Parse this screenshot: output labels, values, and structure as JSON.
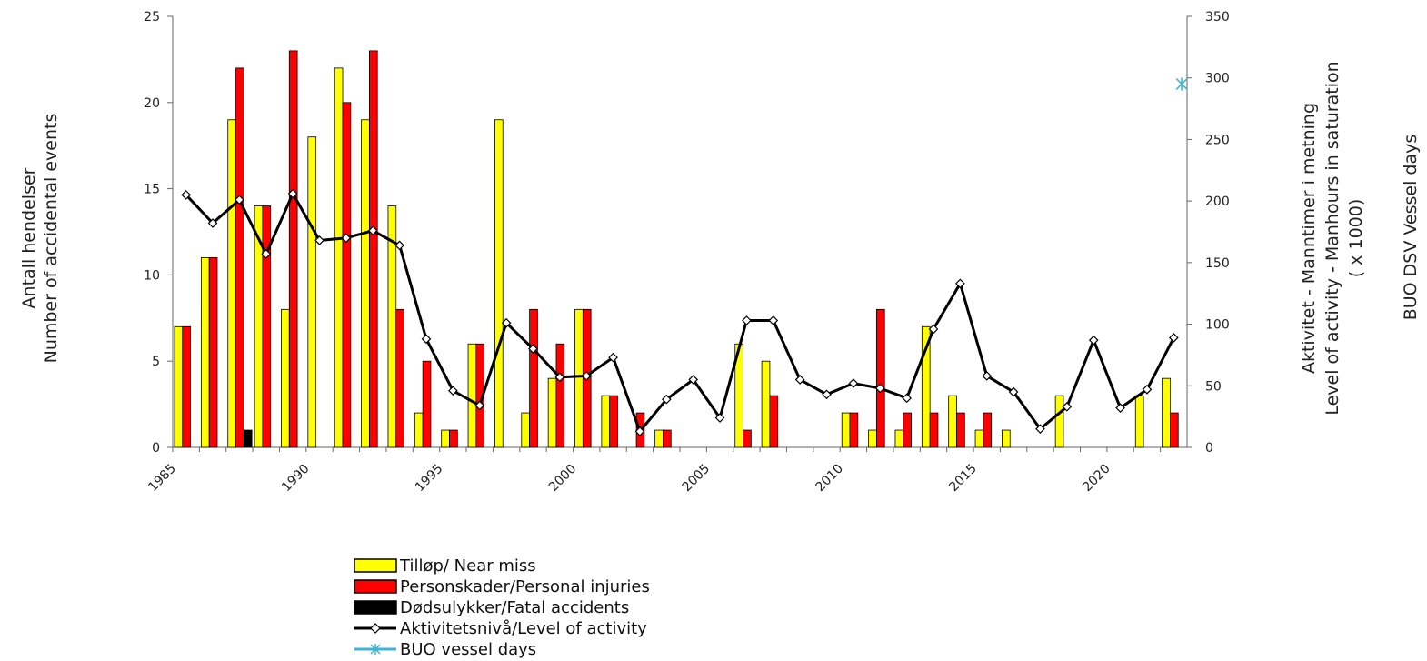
{
  "chart_data": {
    "type": "bar",
    "years": [
      1985,
      1986,
      1987,
      1988,
      1989,
      1990,
      1991,
      1992,
      1993,
      1994,
      1995,
      1996,
      1997,
      1998,
      1999,
      2000,
      2001,
      2002,
      2003,
      2004,
      2005,
      2006,
      2007,
      2008,
      2009,
      2010,
      2011,
      2012,
      2013,
      2014,
      2015,
      2016,
      2017,
      2018,
      2019,
      2020,
      2021,
      2022
    ],
    "x_tick_labels": [
      "1985",
      "1990",
      "1995",
      "2000",
      "2005",
      "2010",
      "2015",
      "2020"
    ],
    "y_left": {
      "label_line1": "Antall hendelser",
      "label_line2": "Number of accidental events",
      "ylim": [
        0,
        25
      ],
      "ticks": [
        "0",
        "5",
        "10",
        "15",
        "20",
        "25"
      ]
    },
    "y_right": {
      "label_line1": "Aktivitet - Manntimer i metning",
      "label_line2": "Level of activity - Manhours in saturation",
      "label_line3": "( x 1000)",
      "ylim": [
        0,
        350
      ],
      "ticks": [
        "0",
        "50",
        "100",
        "150",
        "200",
        "250",
        "300",
        "350"
      ]
    },
    "y_right2": {
      "label": "BUO DSV Vessel days"
    },
    "series": [
      {
        "name": "Tilløp/ Near miss",
        "kind": "bar",
        "color": "#ffff00",
        "values": [
          7,
          11,
          19,
          14,
          8,
          18,
          22,
          19,
          14,
          2,
          1,
          6,
          19,
          2,
          4,
          8,
          3,
          0,
          1,
          0,
          0,
          6,
          5,
          0,
          0,
          2,
          1,
          1,
          7,
          3,
          1,
          1,
          0,
          3,
          0,
          0,
          3,
          4
        ]
      },
      {
        "name": "Personskader/Personal injuries",
        "kind": "bar",
        "color": "#ff0000",
        "values": [
          7,
          11,
          22,
          14,
          23,
          0,
          20,
          23,
          8,
          5,
          1,
          6,
          0,
          8,
          6,
          8,
          3,
          2,
          1,
          0,
          0,
          1,
          3,
          0,
          0,
          2,
          8,
          2,
          2,
          2,
          2,
          0,
          0,
          0,
          0,
          0,
          0,
          2
        ]
      },
      {
        "name": "Dødsulykker/Fatal accidents",
        "kind": "bar",
        "color": "#000000",
        "values": [
          0,
          0,
          1,
          0,
          0,
          0,
          0,
          0,
          0,
          0,
          0,
          0,
          0,
          0,
          0,
          0,
          0,
          0,
          0,
          0,
          0,
          0,
          0,
          0,
          0,
          0,
          0,
          0,
          0,
          0,
          0,
          0,
          0,
          0,
          0,
          0,
          0,
          0
        ]
      },
      {
        "name": "Aktivitetsnivå/Level of activity",
        "kind": "line",
        "color": "#000000",
        "values": [
          205,
          182,
          201,
          157,
          206,
          168,
          170,
          176,
          164,
          88,
          46,
          34,
          101,
          80,
          57,
          58,
          73,
          13,
          39,
          55,
          24,
          103,
          103,
          55,
          43,
          52,
          48,
          40,
          96,
          133,
          58,
          45,
          15,
          33,
          87,
          32,
          47,
          89
        ]
      },
      {
        "name": "BUO vessel days",
        "kind": "point",
        "color": "#3fb4d6",
        "x": 2022.3,
        "value": 295
      }
    ]
  }
}
